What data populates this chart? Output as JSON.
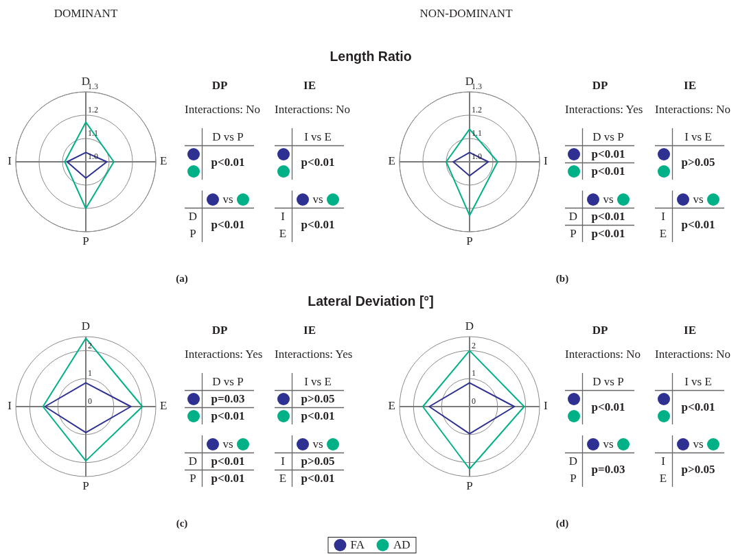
{
  "chart_data": [
    {
      "type": "radar",
      "title": "Length Ratio",
      "subtitle": "DOMINANT",
      "categories": [
        "D",
        "E",
        "P",
        "I"
      ],
      "series": [
        {
          "name": "FA",
          "color": "#2e3192",
          "values": [
            1.04,
            1.09,
            1.07,
            1.08
          ]
        },
        {
          "name": "AD",
          "color": "#00b086",
          "values": [
            1.17,
            1.12,
            1.2,
            1.09
          ]
        }
      ],
      "ylim": [
        1.0,
        1.3
      ],
      "yticks": [
        {
          "value": 1.0,
          "label": "1.0"
        },
        1.1,
        1.2,
        1.3
      ],
      "grid": true,
      "marker": "none",
      "line_style": "solid",
      "legend": "bottom",
      "annotations": [
        "(a)"
      ]
    },
    {
      "type": "other",
      "title": "DP",
      "subtitle": "Interactions: No",
      "categories": [
        "D vs P"
      ],
      "annotations": [
        "p<0.01"
      ]
    },
    {
      "type": "other",
      "categories": [
        "vs"
      ],
      "y_categories": [
        "D",
        "P"
      ],
      "annotations": [
        "p<0.01"
      ]
    },
    {
      "type": "other",
      "title": "IE",
      "subtitle": "Interactions: No",
      "categories": [
        "I vs E"
      ],
      "annotations": [
        "p<0.01"
      ]
    },
    {
      "type": "other",
      "categories": [
        "vs"
      ],
      "y_categories": [
        "I",
        "E"
      ],
      "annotations": [
        "p<0.01"
      ]
    },
    {
      "type": "radar",
      "subtitle": "NON-DOMINANT",
      "categories": [
        "D",
        "I",
        "P",
        "E"
      ],
      "series": [
        {
          "color": "#2e3192",
          "values": [
            1.04,
            1.08,
            1.06,
            1.07
          ]
        },
        {
          "color": "#00b086",
          "values": [
            1.14,
            1.12,
            1.23,
            1.1
          ]
        }
      ],
      "ylim": [
        1.0,
        1.3
      ],
      "yticks": [
        {
          "value": 1.0,
          "label": "1.0"
        },
        1.1,
        1.2,
        1.3
      ],
      "grid": true,
      "marker": "none",
      "line_style": "solid",
      "annotations": [
        "(b)"
      ]
    },
    {
      "type": "other",
      "title": "DP",
      "subtitle": "Interactions: Yes",
      "categories": [
        "D vs P"
      ],
      "annotations": [
        "p<0.01",
        "p<0.01"
      ]
    },
    {
      "type": "other",
      "categories": [
        "vs"
      ],
      "y_categories": [
        "D",
        "P"
      ],
      "annotations": [
        "p<0.01",
        "p<0.01"
      ]
    },
    {
      "type": "other",
      "title": "IE",
      "subtitle": "Interactions: No",
      "categories": [
        "I vs E"
      ],
      "annotations": [
        "p>0.05"
      ]
    },
    {
      "type": "other",
      "categories": [
        "vs"
      ],
      "y_categories": [
        "I",
        "E"
      ],
      "annotations": [
        "p<0.01"
      ]
    },
    {
      "type": "radar",
      "title": "Lateral Deviation [°]",
      "categories": [
        "D",
        "E",
        "P",
        "I"
      ],
      "series": [
        {
          "color": "#2e3192",
          "values": [
            0.85,
            1.61,
            0.93,
            1.46
          ]
        },
        {
          "color": "#00b086",
          "values": [
            2.44,
            2.02,
            1.94,
            1.53
          ]
        }
      ],
      "ylim": [
        0,
        2.5
      ],
      "yticks": [
        0,
        1,
        2
      ],
      "grid": true,
      "marker": "none",
      "line_style": "solid",
      "annotations": [
        "(c)"
      ]
    },
    {
      "type": "other",
      "title": "DP",
      "subtitle": "Interactions: Yes",
      "categories": [
        "D vs P"
      ],
      "annotations": [
        "p=0.03",
        "p<0.01"
      ]
    },
    {
      "type": "other",
      "categories": [
        "vs"
      ],
      "y_categories": [
        "D",
        "P"
      ],
      "annotations": [
        "p<0.01",
        "p<0.01"
      ]
    },
    {
      "type": "other",
      "title": "IE",
      "subtitle": "Interactions: Yes",
      "categories": [
        "I vs E"
      ],
      "annotations": [
        "p>0.05",
        "p<0.01"
      ]
    },
    {
      "type": "other",
      "categories": [
        "vs"
      ],
      "y_categories": [
        "I",
        "E"
      ],
      "annotations": [
        "p>0.05",
        "p<0.01"
      ]
    },
    {
      "type": "radar",
      "categories": [
        "D",
        "I",
        "P",
        "E"
      ],
      "series": [
        {
          "color": "#2e3192",
          "values": [
            0.85,
            1.6,
            0.97,
            1.44
          ]
        },
        {
          "color": "#00b086",
          "values": [
            2.0,
            1.95,
            2.23,
            1.67
          ]
        }
      ],
      "ylim": [
        0,
        2.5
      ],
      "yticks": [
        0,
        1,
        2
      ],
      "grid": true,
      "marker": "none",
      "line_style": "solid",
      "annotations": [
        "(d)"
      ]
    },
    {
      "type": "other",
      "title": "DP",
      "subtitle": "Interactions: No",
      "categories": [
        "D vs P"
      ],
      "annotations": [
        "p<0.01"
      ]
    },
    {
      "type": "other",
      "categories": [
        "vs"
      ],
      "y_categories": [
        "D",
        "P"
      ],
      "annotations": [
        "p=0.03"
      ]
    },
    {
      "type": "other",
      "title": "IE",
      "subtitle": "Interactions: No",
      "categories": [
        "I vs E"
      ],
      "annotations": [
        "p<0.01"
      ]
    },
    {
      "type": "other",
      "categories": [
        "vs"
      ],
      "y_categories": [
        "I",
        "E"
      ],
      "annotations": [
        "p>0.05"
      ]
    }
  ]
}
